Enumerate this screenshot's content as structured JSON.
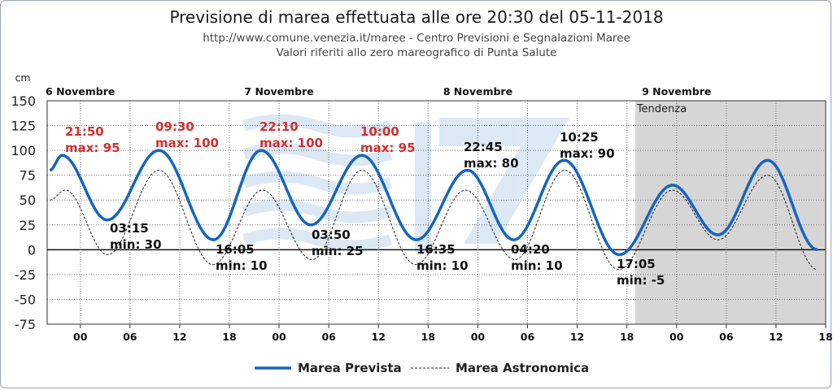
{
  "chart_data": {
    "type": "line",
    "title": "Previsione di marea effettuata alle ore 20:30 del 05-11-2018",
    "subtitle1": "http://www.comune.venezia.it/maree - Centro Previsioni e Segnalazioni Maree",
    "subtitle2": "Valori riferiti allo zero mareografico di Punta Salute",
    "ylabel": "cm",
    "ylim": [
      -75,
      150
    ],
    "y_ticks": [
      "150",
      "125",
      "100",
      "75",
      "50",
      "25",
      "0",
      "-25",
      "-50",
      "-75"
    ],
    "x_ticks": [
      "00",
      "06",
      "12",
      "18",
      "00",
      "06",
      "12",
      "18",
      "00",
      "06",
      "12",
      "18",
      "00",
      "06",
      "12",
      "18"
    ],
    "days": [
      "6 Novembre",
      "7 Novembre",
      "8 Novembre",
      "9 Novembre"
    ],
    "x_unit": "hours from 6 Novembre 00:00",
    "xlim": [
      -4,
      90
    ],
    "grid": true,
    "trend_label": "Tendenza",
    "trend_start_hour": 67,
    "legend_position": "bottom",
    "series": [
      {
        "name": "Marea Prevista",
        "color": "#1565c0",
        "style": "solid",
        "x": [
          -3.7,
          -2.2,
          3.25,
          9.5,
          16.08,
          21.83,
          27.83,
          34.0,
          40.58,
          46.75,
          52.33,
          58.42,
          65.08,
          71.5,
          77.0,
          83.0,
          89.0
        ],
        "values": [
          80,
          95,
          30,
          100,
          10,
          100,
          25,
          95,
          10,
          80,
          10,
          90,
          -5,
          65,
          15,
          90,
          0
        ]
      },
      {
        "name": "Marea Astronomica",
        "color": "#222222",
        "style": "dashed",
        "x": [
          -3.7,
          -1.8,
          3.3,
          9.5,
          16.0,
          22.0,
          28.0,
          34.0,
          40.5,
          46.5,
          52.5,
          58.5,
          65.0,
          71.5,
          77.0,
          83.0,
          89.0
        ],
        "values": [
          50,
          60,
          -5,
          80,
          -15,
          60,
          -10,
          80,
          -15,
          60,
          -10,
          80,
          -20,
          60,
          10,
          75,
          -20
        ]
      }
    ],
    "annotations": [
      {
        "time": "21:50",
        "text": "max: 95",
        "color": "#d32f2f"
      },
      {
        "time": "09:30",
        "text": "max: 100",
        "color": "#d32f2f"
      },
      {
        "time": "22:10",
        "text": "max: 100",
        "color": "#d32f2f"
      },
      {
        "time": "10:00",
        "text": "max: 95",
        "color": "#d32f2f"
      },
      {
        "time": "22:45",
        "text": "max: 80",
        "color": "#111111"
      },
      {
        "time": "10:25",
        "text": "max: 90",
        "color": "#111111"
      },
      {
        "time": "03:15",
        "text": "min: 30",
        "color": "#111111"
      },
      {
        "time": "16:05",
        "text": "min: 10",
        "color": "#111111"
      },
      {
        "time": "03:50",
        "text": "min: 25",
        "color": "#111111"
      },
      {
        "time": "16:35",
        "text": "min: 10",
        "color": "#111111"
      },
      {
        "time": "04:20",
        "text": "min: 10",
        "color": "#111111"
      },
      {
        "time": "17:05",
        "text": "min: -5",
        "color": "#111111"
      }
    ]
  }
}
